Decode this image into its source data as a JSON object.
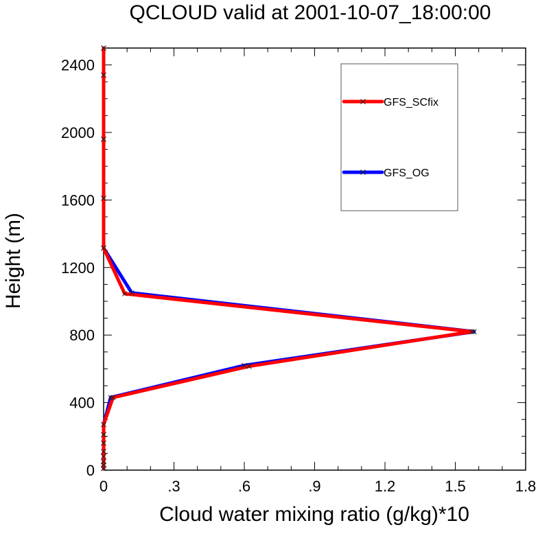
{
  "chart_data": {
    "type": "line",
    "title": "QCLOUD valid at 2001-10-07_18:00:00",
    "xlabel": "Cloud water mixing ratio (g/kg)*10",
    "ylabel": "Height (m)",
    "xlim": [
      0,
      1.8
    ],
    "ylim": [
      0,
      2500
    ],
    "xticks": [
      0,
      0.3,
      0.6,
      0.9,
      1.2,
      1.5,
      1.8
    ],
    "xtick_labels": [
      "0",
      ".3",
      ".6",
      ".9",
      "1.2",
      "1.5",
      "1.8"
    ],
    "yticks": [
      0,
      400,
      800,
      1200,
      1600,
      2000,
      2400
    ],
    "ytick_labels": [
      "0",
      "400",
      "800",
      "1200",
      "1600",
      "2000",
      "2400"
    ],
    "grid": false,
    "legend_placement": "top-right",
    "series": [
      {
        "name": "GFS_SCfix",
        "color": "#ff0000",
        "marker": "x",
        "points": [
          [
            0,
            10
          ],
          [
            0,
            30
          ],
          [
            0,
            50
          ],
          [
            0,
            80
          ],
          [
            0,
            110
          ],
          [
            0,
            160
          ],
          [
            0,
            210
          ],
          [
            0,
            270
          ],
          [
            0.04,
            430
          ],
          [
            0.62,
            615
          ],
          [
            1.57,
            820
          ],
          [
            0.09,
            1045
          ],
          [
            0,
            1315
          ],
          [
            0,
            1610
          ],
          [
            0,
            1960
          ],
          [
            0,
            2340
          ],
          [
            0,
            2500
          ]
        ]
      },
      {
        "name": "GFS_OG",
        "color": "#0000ff",
        "marker": "x",
        "points": [
          [
            0,
            10
          ],
          [
            0,
            30
          ],
          [
            0,
            50
          ],
          [
            0,
            80
          ],
          [
            0,
            110
          ],
          [
            0,
            160
          ],
          [
            0,
            210
          ],
          [
            0,
            270
          ],
          [
            0.03,
            430
          ],
          [
            0.6,
            620
          ],
          [
            1.58,
            820
          ],
          [
            0.12,
            1050
          ],
          [
            0,
            1315
          ],
          [
            0,
            1610
          ],
          [
            0,
            1960
          ],
          [
            0,
            2340
          ],
          [
            0,
            2500
          ]
        ]
      }
    ]
  }
}
